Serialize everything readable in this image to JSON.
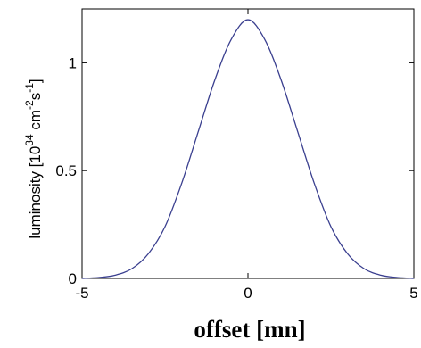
{
  "chart_data": {
    "type": "line",
    "title": "",
    "xlabel": "offset [mn]",
    "ylabel": {
      "text": "luminosity [10",
      "sup1": "34",
      "mid": " cm",
      "sup2": "-2",
      "mid2": "s",
      "sup3": "-1",
      "end": "]"
    },
    "xlim": [
      -5,
      5
    ],
    "ylim": [
      0,
      1.25
    ],
    "x_ticks": [
      -5,
      0,
      5
    ],
    "y_ticks": [
      0,
      0.5,
      1
    ],
    "x_tick_labels": [
      "-5",
      "0",
      "5"
    ],
    "y_tick_labels": [
      "0",
      "0.5",
      "1"
    ],
    "grid": false,
    "line_color": "#3a3f8f",
    "series": [
      {
        "x": [
          -5,
          -4.5,
          -4,
          -3.5,
          -3,
          -2.5,
          -2,
          -1.5,
          -1,
          -0.5,
          0,
          0.5,
          1,
          1.5,
          2,
          2.5,
          3,
          3.5,
          4,
          4.5,
          5
        ],
        "y": [
          0.0,
          0.004,
          0.015,
          0.045,
          0.115,
          0.24,
          0.44,
          0.68,
          0.92,
          1.11,
          1.2,
          1.11,
          0.92,
          0.68,
          0.44,
          0.24,
          0.115,
          0.045,
          0.015,
          0.004,
          0.0
        ]
      }
    ]
  }
}
